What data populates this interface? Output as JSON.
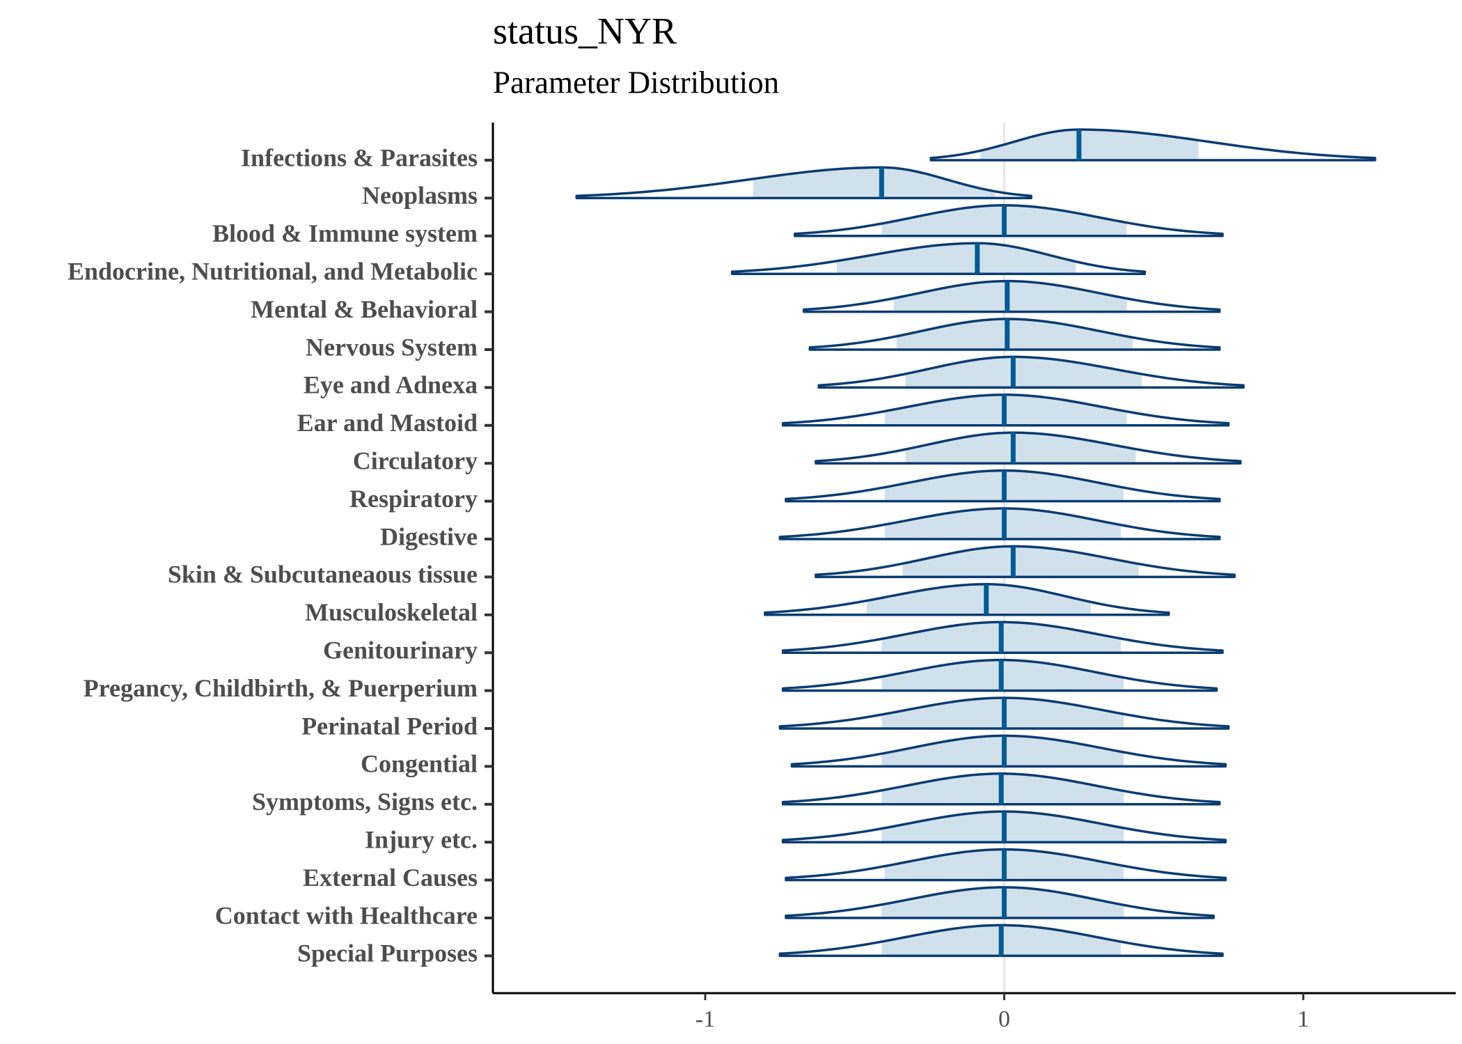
{
  "chart_data": {
    "type": "ridgeline",
    "title": "status_NYR",
    "subtitle": "Parameter Distribution",
    "categories": [
      "Infections & Parasites",
      "Neoplasms",
      "Blood & Immune system",
      "Endocrine, Nutritional, and Metabolic",
      "Mental & Behavioral",
      "Nervous System",
      "Eye and Adnexa",
      "Ear and Mastoid",
      "Circulatory",
      "Respiratory",
      "Digestive",
      "Skin & Subcutaneaous tissue",
      "Musculoskeletal",
      "Genitourinary",
      "Pregancy, Childbirth, & Puerperium",
      "Perinatal Period",
      "Congential",
      "Symptoms, Signs etc.",
      "Injury etc.",
      "External Causes",
      "Contact with Healthcare",
      "Special Purposes"
    ],
    "medians": [
      0.25,
      -0.41,
      0.0,
      -0.09,
      0.01,
      0.01,
      0.03,
      0.0,
      0.03,
      0.0,
      0.0,
      0.03,
      -0.06,
      -0.01,
      -0.01,
      0.0,
      0.0,
      -0.01,
      0.0,
      0.0,
      0.0,
      -0.01
    ],
    "inner_low": [
      -0.08,
      -0.84,
      -0.41,
      -0.56,
      -0.37,
      -0.36,
      -0.33,
      -0.4,
      -0.33,
      -0.4,
      -0.4,
      -0.34,
      -0.46,
      -0.41,
      -0.41,
      -0.41,
      -0.41,
      -0.41,
      -0.41,
      -0.4,
      -0.41,
      -0.41
    ],
    "inner_high": [
      0.65,
      -0.03,
      0.41,
      0.24,
      0.41,
      0.43,
      0.46,
      0.41,
      0.44,
      0.4,
      0.39,
      0.45,
      0.29,
      0.39,
      0.4,
      0.4,
      0.4,
      0.4,
      0.4,
      0.4,
      0.4,
      0.39
    ],
    "outer_low": [
      -0.245,
      -1.43,
      -0.7,
      -0.91,
      -0.67,
      -0.65,
      -0.62,
      -0.74,
      -0.63,
      -0.73,
      -0.75,
      -0.63,
      -0.8,
      -0.74,
      -0.74,
      -0.75,
      -0.71,
      -0.74,
      -0.74,
      -0.73,
      -0.73,
      -0.75
    ],
    "outer_high": [
      1.24,
      0.09,
      0.73,
      0.47,
      0.72,
      0.72,
      0.8,
      0.75,
      0.79,
      0.72,
      0.72,
      0.77,
      0.55,
      0.73,
      0.71,
      0.75,
      0.74,
      0.72,
      0.74,
      0.74,
      0.7,
      0.73
    ],
    "line_color": "#0b3c71",
    "fill_color": "#d1e1ec",
    "median_color": "#005b96",
    "xlim": [
      -1.71,
      1.51
    ],
    "xticks": [
      -1,
      0,
      1
    ]
  }
}
